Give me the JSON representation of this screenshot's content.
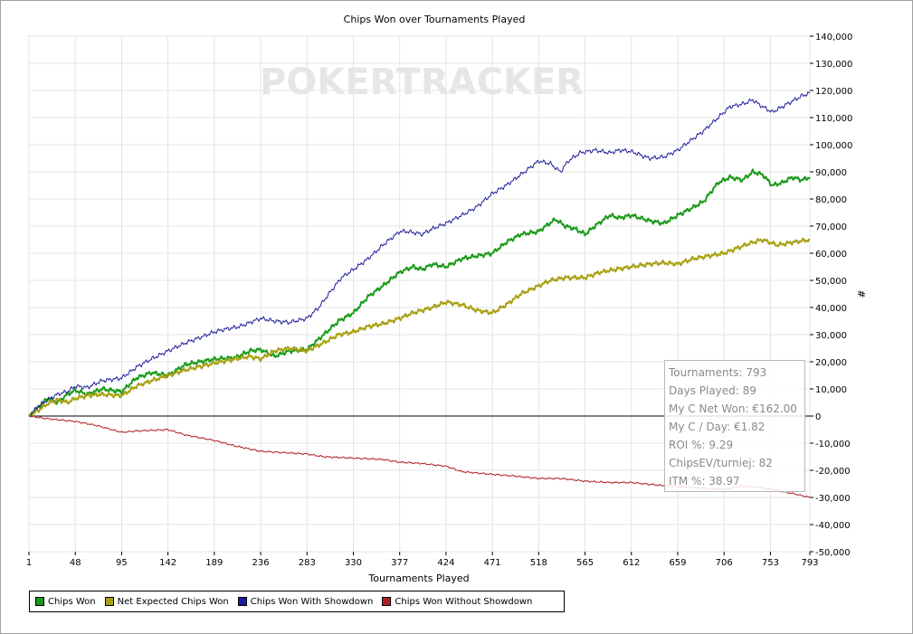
{
  "watermark": "POKERTRACKER",
  "stats": {
    "tournaments": "Tournaments: 793",
    "days_played": "Days Played: 89",
    "net_won": "My C Net Won: €162.00",
    "per_day": "My C / Day: €1.82",
    "roi": "ROI %: 9.29",
    "chips_ev": "ChipsEV/turniej: 82",
    "itm": "ITM %: 38.97"
  },
  "chart_data": {
    "type": "line",
    "title": "Chips Won over Tournaments Played",
    "xlabel": "Tournaments Played",
    "ylabel": "#",
    "xlim": [
      1,
      793
    ],
    "ylim": [
      -50000,
      140000
    ],
    "x_ticks": [
      1,
      48,
      95,
      142,
      189,
      236,
      283,
      330,
      377,
      424,
      471,
      518,
      565,
      612,
      659,
      706,
      753,
      793
    ],
    "y_ticks": [
      140000,
      130000,
      120000,
      110000,
      100000,
      90000,
      80000,
      70000,
      60000,
      50000,
      40000,
      30000,
      20000,
      10000,
      0,
      -10000,
      -20000,
      -30000,
      -40000,
      -50000
    ],
    "y_tick_labels": [
      "140,000",
      "130,000",
      "120,000",
      "110,000",
      "100,000",
      "90,000",
      "80,000",
      "70,000",
      "60,000",
      "50,000",
      "40,000",
      "30,000",
      "20,000",
      "10,000",
      "0",
      "-10,000",
      "-20,000",
      "-30,000",
      "-40,000",
      "-50,000"
    ],
    "grid": true,
    "legend_position": "bottom-left",
    "series": [
      {
        "name": "Chips Won",
        "color": "#1a9a1a",
        "width": 2,
        "points": [
          [
            1,
            0
          ],
          [
            10,
            3000
          ],
          [
            20,
            6500
          ],
          [
            30,
            5000
          ],
          [
            40,
            8000
          ],
          [
            48,
            9500
          ],
          [
            60,
            8000
          ],
          [
            75,
            10000
          ],
          [
            95,
            9000
          ],
          [
            110,
            14000
          ],
          [
            125,
            16000
          ],
          [
            142,
            15000
          ],
          [
            160,
            19000
          ],
          [
            189,
            21000
          ],
          [
            210,
            21500
          ],
          [
            225,
            24000
          ],
          [
            236,
            24500
          ],
          [
            250,
            22000
          ],
          [
            265,
            24000
          ],
          [
            283,
            24500
          ],
          [
            300,
            30000
          ],
          [
            315,
            35000
          ],
          [
            330,
            38000
          ],
          [
            345,
            44000
          ],
          [
            360,
            48000
          ],
          [
            377,
            53000
          ],
          [
            390,
            55000
          ],
          [
            400,
            54000
          ],
          [
            410,
            56000
          ],
          [
            424,
            55000
          ],
          [
            440,
            58000
          ],
          [
            455,
            59000
          ],
          [
            471,
            60000
          ],
          [
            485,
            64000
          ],
          [
            500,
            67000
          ],
          [
            518,
            68000
          ],
          [
            525,
            70000
          ],
          [
            535,
            72500
          ],
          [
            545,
            70000
          ],
          [
            555,
            69000
          ],
          [
            565,
            67000
          ],
          [
            575,
            70000
          ],
          [
            590,
            74000
          ],
          [
            600,
            73000
          ],
          [
            612,
            74000
          ],
          [
            630,
            72000
          ],
          [
            645,
            71000
          ],
          [
            659,
            74000
          ],
          [
            670,
            76000
          ],
          [
            685,
            79000
          ],
          [
            700,
            86000
          ],
          [
            712,
            88000
          ],
          [
            725,
            87000
          ],
          [
            735,
            90000
          ],
          [
            745,
            89000
          ],
          [
            755,
            85000
          ],
          [
            765,
            86000
          ],
          [
            775,
            88000
          ],
          [
            785,
            87000
          ],
          [
            793,
            88000
          ]
        ]
      },
      {
        "name": "Net Expected Chips Won",
        "color": "#a8a010",
        "width": 2,
        "points": [
          [
            1,
            0
          ],
          [
            10,
            2000
          ],
          [
            20,
            4500
          ],
          [
            30,
            6000
          ],
          [
            40,
            5000
          ],
          [
            48,
            6500
          ],
          [
            60,
            7500
          ],
          [
            75,
            8000
          ],
          [
            95,
            7500
          ],
          [
            110,
            11000
          ],
          [
            125,
            13000
          ],
          [
            142,
            15000
          ],
          [
            160,
            17000
          ],
          [
            189,
            19500
          ],
          [
            210,
            21000
          ],
          [
            225,
            22000
          ],
          [
            236,
            21000
          ],
          [
            250,
            24000
          ],
          [
            265,
            25000
          ],
          [
            283,
            24000
          ],
          [
            300,
            27000
          ],
          [
            315,
            30000
          ],
          [
            330,
            31000
          ],
          [
            345,
            33000
          ],
          [
            360,
            34000
          ],
          [
            377,
            36000
          ],
          [
            390,
            38000
          ],
          [
            400,
            39000
          ],
          [
            410,
            40000
          ],
          [
            424,
            42000
          ],
          [
            440,
            41000
          ],
          [
            455,
            39000
          ],
          [
            471,
            38000
          ],
          [
            485,
            41000
          ],
          [
            500,
            45000
          ],
          [
            518,
            48000
          ],
          [
            530,
            50000
          ],
          [
            545,
            51000
          ],
          [
            565,
            51000
          ],
          [
            580,
            53000
          ],
          [
            595,
            54000
          ],
          [
            612,
            55000
          ],
          [
            630,
            56000
          ],
          [
            645,
            56500
          ],
          [
            659,
            56000
          ],
          [
            675,
            58000
          ],
          [
            690,
            59000
          ],
          [
            706,
            60000
          ],
          [
            720,
            62000
          ],
          [
            735,
            64000
          ],
          [
            745,
            65000
          ],
          [
            760,
            63000
          ],
          [
            775,
            64000
          ],
          [
            793,
            65000
          ]
        ]
      },
      {
        "name": "Chips Won With Showdown",
        "color": "#1c1c9c",
        "width": 1,
        "points": [
          [
            1,
            0
          ],
          [
            10,
            3500
          ],
          [
            20,
            6000
          ],
          [
            30,
            8000
          ],
          [
            40,
            9000
          ],
          [
            48,
            11000
          ],
          [
            60,
            10500
          ],
          [
            75,
            13000
          ],
          [
            95,
            14000
          ],
          [
            110,
            18000
          ],
          [
            125,
            21000
          ],
          [
            142,
            24000
          ],
          [
            160,
            27000
          ],
          [
            175,
            29000
          ],
          [
            189,
            31000
          ],
          [
            200,
            32000
          ],
          [
            215,
            33000
          ],
          [
            236,
            36000
          ],
          [
            250,
            35000
          ],
          [
            265,
            34500
          ],
          [
            283,
            36000
          ],
          [
            295,
            40000
          ],
          [
            305,
            45000
          ],
          [
            318,
            51000
          ],
          [
            330,
            54000
          ],
          [
            345,
            58000
          ],
          [
            360,
            63000
          ],
          [
            377,
            68000
          ],
          [
            385,
            68000
          ],
          [
            400,
            67000
          ],
          [
            410,
            69000
          ],
          [
            424,
            71000
          ],
          [
            440,
            74000
          ],
          [
            455,
            77000
          ],
          [
            471,
            82000
          ],
          [
            485,
            85000
          ],
          [
            500,
            89000
          ],
          [
            518,
            94000
          ],
          [
            530,
            93000
          ],
          [
            540,
            90000
          ],
          [
            548,
            94000
          ],
          [
            560,
            97000
          ],
          [
            575,
            98000
          ],
          [
            590,
            97000
          ],
          [
            600,
            98000
          ],
          [
            612,
            97500
          ],
          [
            630,
            95000
          ],
          [
            645,
            95500
          ],
          [
            659,
            98000
          ],
          [
            670,
            101000
          ],
          [
            685,
            105000
          ],
          [
            700,
            110000
          ],
          [
            712,
            114000
          ],
          [
            725,
            115000
          ],
          [
            735,
            116500
          ],
          [
            745,
            114000
          ],
          [
            755,
            112000
          ],
          [
            765,
            114000
          ],
          [
            775,
            116000
          ],
          [
            785,
            118000
          ],
          [
            793,
            119000
          ]
        ]
      },
      {
        "name": "Chips Won Without Showdown",
        "color": "#b02020",
        "width": 1,
        "points": [
          [
            1,
            0
          ],
          [
            20,
            -1000
          ],
          [
            48,
            -2000
          ],
          [
            70,
            -3500
          ],
          [
            95,
            -6000
          ],
          [
            110,
            -5500
          ],
          [
            142,
            -5000
          ],
          [
            160,
            -7000
          ],
          [
            189,
            -9000
          ],
          [
            210,
            -11000
          ],
          [
            236,
            -13000
          ],
          [
            260,
            -13500
          ],
          [
            283,
            -14000
          ],
          [
            300,
            -15000
          ],
          [
            330,
            -15500
          ],
          [
            360,
            -16000
          ],
          [
            377,
            -17000
          ],
          [
            400,
            -17500
          ],
          [
            424,
            -18500
          ],
          [
            440,
            -20500
          ],
          [
            471,
            -21500
          ],
          [
            490,
            -22000
          ],
          [
            518,
            -23000
          ],
          [
            540,
            -23000
          ],
          [
            565,
            -24000
          ],
          [
            590,
            -24500
          ],
          [
            612,
            -24500
          ],
          [
            640,
            -25500
          ],
          [
            659,
            -26000
          ],
          [
            680,
            -26500
          ],
          [
            706,
            -27000
          ],
          [
            720,
            -26000
          ],
          [
            735,
            -26000
          ],
          [
            755,
            -27000
          ],
          [
            775,
            -28500
          ],
          [
            793,
            -30000
          ]
        ]
      }
    ]
  }
}
